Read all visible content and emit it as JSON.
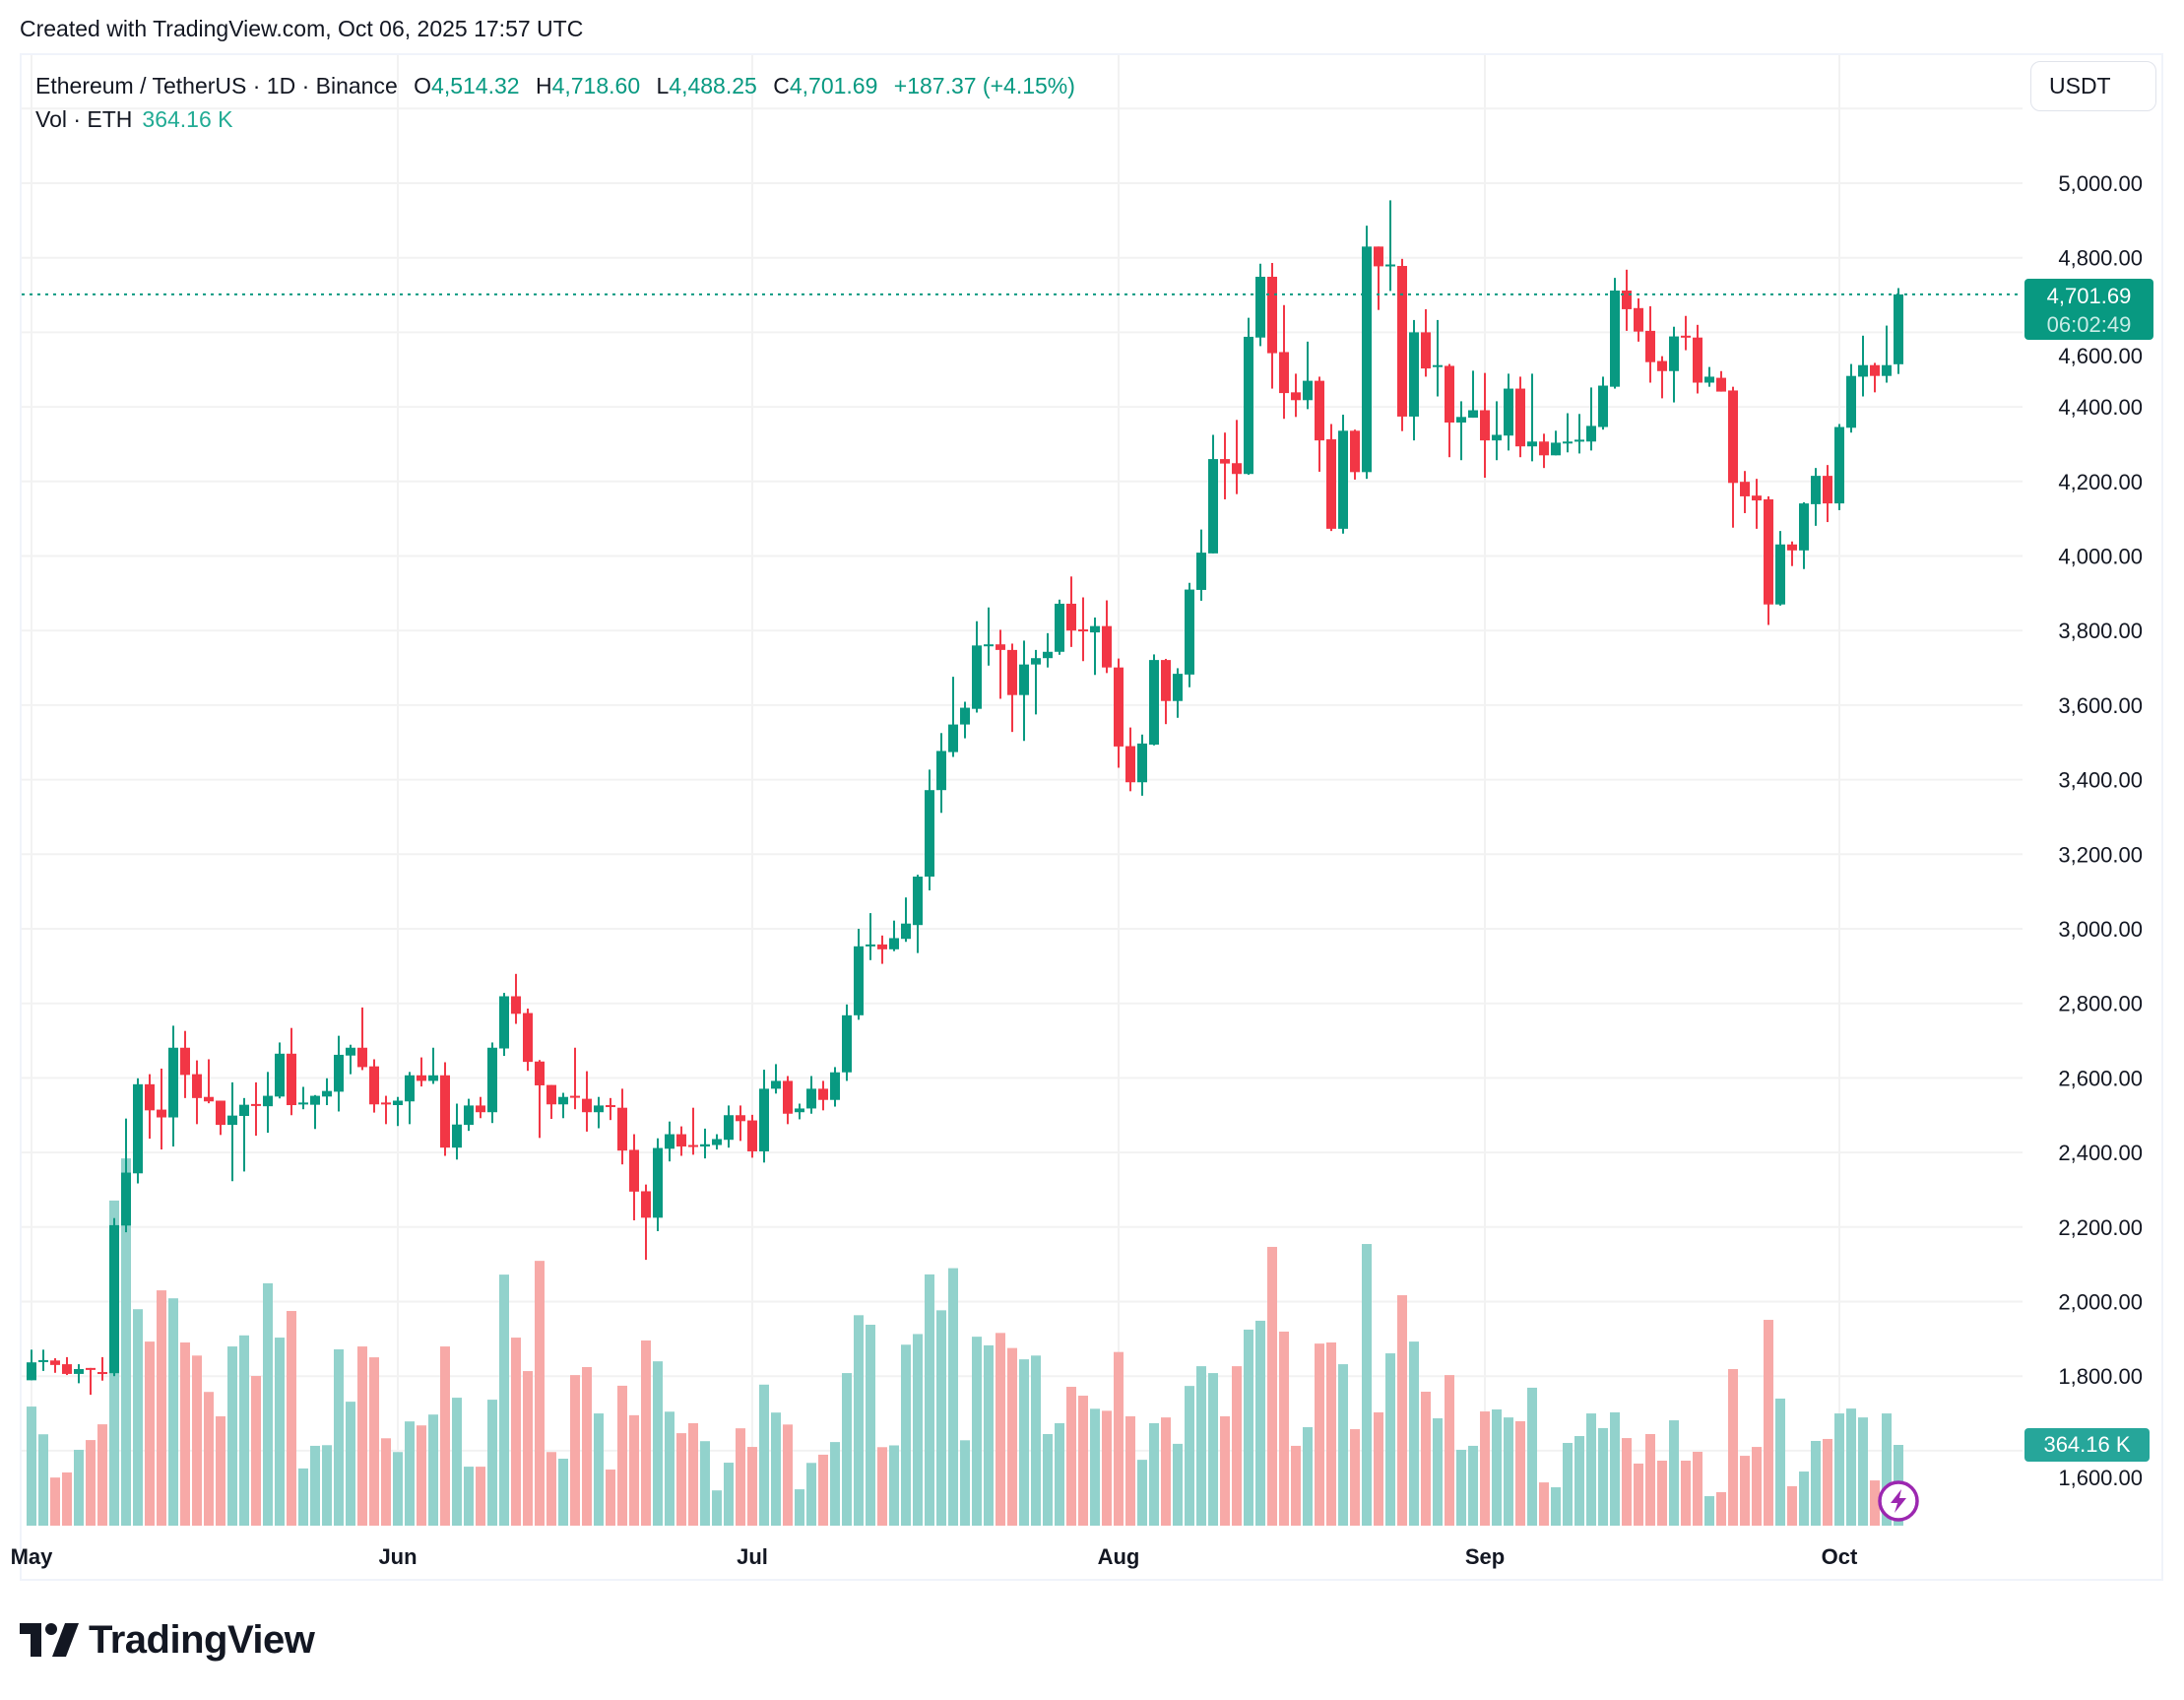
{
  "header": {
    "created": "Created with TradingView.com, Oct 06, 2025 17:57 UTC"
  },
  "legend": {
    "symbol": "Ethereum / TetherUS · 1D · Binance",
    "o_label": "O",
    "o_value": "4,514.32",
    "h_label": "H",
    "h_value": "4,718.60",
    "l_label": "L",
    "l_value": "4,488.25",
    "c_label": "C",
    "c_value": "4,701.69",
    "change": "+187.37 (+4.15%)",
    "vol_label": "Vol · ETH",
    "vol_value": "364.16 K"
  },
  "axis": {
    "currency_button": "USDT",
    "last_price": "4,701.69",
    "countdown": "06:02:49",
    "last_volume": "364.16 K"
  },
  "footer": {
    "brand": "TradingView"
  },
  "icons": {
    "alert": "lightning-bolt-icon",
    "logo": "tradingview-logo-icon"
  },
  "colors": {
    "up": "#089981",
    "down": "#f23645",
    "up_volume": "#92d2cc",
    "down_volume": "#f7a9a7",
    "grid": "#f2f2f2",
    "alert": "#9c27b0"
  },
  "chart_data": {
    "type": "candlestick",
    "symbol": "ETHUSDT",
    "interval": "1D",
    "grid": true,
    "y_axis_ticks": [
      "5,000.00",
      "4,800.00",
      "4,600.00",
      "4,400.00",
      "4,200.00",
      "4,000.00",
      "3,800.00",
      "3,600.00",
      "3,400.00",
      "3,200.00",
      "3,000.00",
      "2,800.00",
      "2,600.00",
      "2,400.00",
      "2,200.00",
      "2,000.00",
      "1,800.00",
      "1,600.00"
    ],
    "y_tick_values": [
      5000,
      4800,
      4600,
      4400,
      4200,
      4000,
      3800,
      3600,
      3400,
      3200,
      3000,
      2800,
      2600,
      2400,
      2200,
      2000,
      1800,
      1600
    ],
    "x_axis_ticks": [
      {
        "label": "May",
        "date": "2025-05-01"
      },
      {
        "label": "Jun",
        "date": "2025-06-01"
      },
      {
        "label": "Jul",
        "date": "2025-07-01"
      },
      {
        "label": "Aug",
        "date": "2025-08-01"
      },
      {
        "label": "Sep",
        "date": "2025-09-01"
      },
      {
        "label": "Oct",
        "date": "2025-10-01"
      }
    ],
    "last_price": 4701.69,
    "volume_unit": "K ETH",
    "columns": [
      "date",
      "open",
      "high",
      "low",
      "close",
      "volume"
    ],
    "candles": [
      [
        "2025-05-01",
        1789,
        1871,
        1789,
        1837,
        537
      ],
      [
        "2025-05-02",
        1838,
        1871,
        1814,
        1843,
        412
      ],
      [
        "2025-05-03",
        1842,
        1848,
        1809,
        1830,
        217
      ],
      [
        "2025-05-04",
        1832,
        1851,
        1803,
        1806,
        240
      ],
      [
        "2025-05-05",
        1806,
        1832,
        1781,
        1819,
        342
      ],
      [
        "2025-05-06",
        1822,
        1822,
        1750,
        1817,
        386
      ],
      [
        "2025-05-07",
        1811,
        1851,
        1788,
        1806,
        457
      ],
      [
        "2025-05-08",
        1808,
        2224,
        1800,
        2205,
        1466
      ],
      [
        "2025-05-09",
        2204,
        2491,
        2186,
        2346,
        1656
      ],
      [
        "2025-05-10",
        2344,
        2599,
        2317,
        2583,
        976
      ],
      [
        "2025-05-11",
        2583,
        2610,
        2437,
        2513,
        830
      ],
      [
        "2025-05-12",
        2515,
        2625,
        2408,
        2494,
        1061
      ],
      [
        "2025-05-13",
        2494,
        2740,
        2416,
        2681,
        1025
      ],
      [
        "2025-05-14",
        2681,
        2726,
        2546,
        2608,
        826
      ],
      [
        "2025-05-15",
        2610,
        2647,
        2476,
        2546,
        767
      ],
      [
        "2025-05-16",
        2549,
        2650,
        2532,
        2537,
        603
      ],
      [
        "2025-05-17",
        2539,
        2539,
        2447,
        2474,
        493
      ],
      [
        "2025-05-18",
        2474,
        2588,
        2323,
        2499,
        808
      ],
      [
        "2025-05-19",
        2498,
        2546,
        2349,
        2528,
        858
      ],
      [
        "2025-05-20",
        2530,
        2588,
        2445,
        2527,
        675
      ],
      [
        "2025-05-21",
        2524,
        2616,
        2453,
        2552,
        1093
      ],
      [
        "2025-05-22",
        2550,
        2695,
        2545,
        2665,
        848
      ],
      [
        "2025-05-23",
        2665,
        2734,
        2500,
        2527,
        968
      ],
      [
        "2025-05-24",
        2530,
        2576,
        2516,
        2534,
        258
      ],
      [
        "2025-05-25",
        2528,
        2554,
        2463,
        2552,
        360
      ],
      [
        "2025-05-26",
        2550,
        2599,
        2527,
        2565,
        363
      ],
      [
        "2025-05-27",
        2563,
        2713,
        2510,
        2662,
        795
      ],
      [
        "2025-05-28",
        2660,
        2689,
        2610,
        2681,
        559
      ],
      [
        "2025-05-29",
        2681,
        2789,
        2621,
        2629,
        808
      ],
      [
        "2025-05-30",
        2631,
        2650,
        2507,
        2529,
        759
      ],
      [
        "2025-05-31",
        2534,
        2552,
        2476,
        2530,
        394
      ],
      [
        "2025-06-01",
        2527,
        2549,
        2471,
        2539,
        332
      ],
      [
        "2025-06-02",
        2537,
        2616,
        2476,
        2607,
        470
      ],
      [
        "2025-06-03",
        2607,
        2655,
        2577,
        2592,
        452
      ],
      [
        "2025-06-04",
        2592,
        2681,
        2584,
        2607,
        501
      ],
      [
        "2025-06-05",
        2607,
        2642,
        2391,
        2413,
        808
      ],
      [
        "2025-06-06",
        2413,
        2531,
        2381,
        2475,
        577
      ],
      [
        "2025-06-07",
        2474,
        2544,
        2458,
        2526,
        266
      ],
      [
        "2025-06-08",
        2526,
        2549,
        2492,
        2508,
        266
      ],
      [
        "2025-06-09",
        2508,
        2695,
        2479,
        2681,
        568
      ],
      [
        "2025-06-10",
        2679,
        2828,
        2659,
        2819,
        1132
      ],
      [
        "2025-06-11",
        2819,
        2879,
        2745,
        2772,
        848
      ],
      [
        "2025-06-12",
        2774,
        2786,
        2619,
        2643,
        697
      ],
      [
        "2025-06-13",
        2644,
        2648,
        2439,
        2580,
        1194
      ],
      [
        "2025-06-14",
        2581,
        2581,
        2490,
        2529,
        332
      ],
      [
        "2025-06-15",
        2529,
        2560,
        2492,
        2549,
        302
      ],
      [
        "2025-06-16",
        2552,
        2681,
        2516,
        2547,
        679
      ],
      [
        "2025-06-17",
        2544,
        2618,
        2456,
        2508,
        715
      ],
      [
        "2025-06-18",
        2508,
        2549,
        2465,
        2526,
        506
      ],
      [
        "2025-06-19",
        2527,
        2546,
        2487,
        2524,
        253
      ],
      [
        "2025-06-20",
        2520,
        2571,
        2368,
        2405,
        631
      ],
      [
        "2025-06-21",
        2407,
        2449,
        2218,
        2295,
        498
      ],
      [
        "2025-06-22",
        2296,
        2314,
        2112,
        2225,
        835
      ],
      [
        "2025-06-23",
        2225,
        2438,
        2189,
        2412,
        741
      ],
      [
        "2025-06-24",
        2410,
        2483,
        2376,
        2449,
        514
      ],
      [
        "2025-06-25",
        2449,
        2470,
        2391,
        2416,
        417
      ],
      [
        "2025-06-26",
        2420,
        2520,
        2394,
        2416,
        462
      ],
      [
        "2025-06-27",
        2416,
        2464,
        2384,
        2422,
        381
      ],
      [
        "2025-06-28",
        2420,
        2449,
        2408,
        2436,
        159
      ],
      [
        "2025-06-29",
        2434,
        2526,
        2413,
        2500,
        284
      ],
      [
        "2025-06-30",
        2500,
        2526,
        2431,
        2484,
        439
      ],
      [
        "2025-07-01",
        2486,
        2501,
        2386,
        2403,
        355
      ],
      [
        "2025-07-02",
        2403,
        2622,
        2373,
        2571,
        636
      ],
      [
        "2025-07-03",
        2571,
        2637,
        2558,
        2592,
        510
      ],
      [
        "2025-07-04",
        2592,
        2605,
        2476,
        2504,
        456
      ],
      [
        "2025-07-05",
        2508,
        2531,
        2489,
        2518,
        164
      ],
      [
        "2025-07-06",
        2518,
        2605,
        2504,
        2571,
        283
      ],
      [
        "2025-07-07",
        2571,
        2592,
        2513,
        2541,
        320
      ],
      [
        "2025-07-08",
        2541,
        2629,
        2523,
        2615,
        377
      ],
      [
        "2025-07-09",
        2615,
        2797,
        2592,
        2768,
        688
      ],
      [
        "2025-07-10",
        2768,
        3000,
        2756,
        2953,
        949
      ],
      [
        "2025-07-11",
        2953,
        3042,
        2916,
        2958,
        906
      ],
      [
        "2025-07-12",
        2958,
        2982,
        2906,
        2945,
        354
      ],
      [
        "2025-07-13",
        2945,
        3022,
        2940,
        2975,
        362
      ],
      [
        "2025-07-14",
        2973,
        3084,
        2965,
        3014,
        816
      ],
      [
        "2025-07-15",
        3010,
        3145,
        2935,
        3140,
        864
      ],
      [
        "2025-07-16",
        3140,
        3427,
        3103,
        3372,
        1133
      ],
      [
        "2025-07-17",
        3372,
        3525,
        3311,
        3477,
        971
      ],
      [
        "2025-07-18",
        3474,
        3676,
        3461,
        3548,
        1161
      ],
      [
        "2025-07-19",
        3548,
        3609,
        3511,
        3593,
        385
      ],
      [
        "2025-07-20",
        3590,
        3825,
        3580,
        3760,
        852
      ],
      [
        "2025-07-21",
        3760,
        3862,
        3706,
        3763,
        813
      ],
      [
        "2025-07-22",
        3763,
        3802,
        3617,
        3748,
        869
      ],
      [
        "2025-07-23",
        3748,
        3765,
        3528,
        3627,
        801
      ],
      [
        "2025-07-24",
        3627,
        3773,
        3504,
        3709,
        750
      ],
      [
        "2025-07-25",
        3709,
        3748,
        3575,
        3726,
        767
      ],
      [
        "2025-07-26",
        3726,
        3793,
        3701,
        3743,
        413
      ],
      [
        "2025-07-27",
        3743,
        3883,
        3735,
        3872,
        462
      ],
      [
        "2025-07-28",
        3872,
        3945,
        3756,
        3800,
        626
      ],
      [
        "2025-07-29",
        3803,
        3889,
        3718,
        3800,
        586
      ],
      [
        "2025-07-30",
        3795,
        3835,
        3681,
        3812,
        527
      ],
      [
        "2025-07-31",
        3812,
        3881,
        3686,
        3701,
        518
      ],
      [
        "2025-08-01",
        3701,
        3725,
        3432,
        3489,
        783
      ],
      [
        "2025-08-02",
        3490,
        3540,
        3369,
        3393,
        493
      ],
      [
        "2025-08-03",
        3393,
        3521,
        3357,
        3497,
        297
      ],
      [
        "2025-08-04",
        3494,
        3736,
        3492,
        3721,
        462
      ],
      [
        "2025-08-05",
        3721,
        3724,
        3549,
        3611,
        488
      ],
      [
        "2025-08-06",
        3611,
        3699,
        3566,
        3684,
        369
      ],
      [
        "2025-08-07",
        3682,
        3928,
        3648,
        3910,
        630
      ],
      [
        "2025-08-08",
        3909,
        4071,
        3880,
        4009,
        719
      ],
      [
        "2025-08-09",
        4007,
        4325,
        4007,
        4260,
        688
      ],
      [
        "2025-08-10",
        4260,
        4331,
        4152,
        4248,
        493
      ],
      [
        "2025-08-11",
        4249,
        4365,
        4166,
        4220,
        719
      ],
      [
        "2025-08-12",
        4220,
        4639,
        4218,
        4588,
        884
      ],
      [
        "2025-08-13",
        4586,
        4784,
        4563,
        4749,
        924
      ],
      [
        "2025-08-14",
        4749,
        4786,
        4449,
        4544,
        1257
      ],
      [
        "2025-08-15",
        4547,
        4673,
        4368,
        4437,
        875
      ],
      [
        "2025-08-16",
        4439,
        4489,
        4373,
        4418,
        360
      ],
      [
        "2025-08-17",
        4418,
        4575,
        4394,
        4470,
        444
      ],
      [
        "2025-08-18",
        4470,
        4481,
        4226,
        4310,
        821
      ],
      [
        "2025-08-19",
        4313,
        4354,
        4067,
        4073,
        826
      ],
      [
        "2025-08-20",
        4073,
        4379,
        4060,
        4336,
        728
      ],
      [
        "2025-08-21",
        4336,
        4339,
        4205,
        4225,
        435
      ],
      [
        "2025-08-22",
        4225,
        4886,
        4207,
        4830,
        1270
      ],
      [
        "2025-08-23",
        4830,
        4830,
        4660,
        4777,
        511
      ],
      [
        "2025-08-24",
        4778,
        4954,
        4711,
        4782,
        777
      ],
      [
        "2025-08-25",
        4778,
        4797,
        4335,
        4374,
        1039
      ],
      [
        "2025-08-26",
        4374,
        4633,
        4310,
        4600,
        830
      ],
      [
        "2025-08-27",
        4600,
        4662,
        4481,
        4503,
        604
      ],
      [
        "2025-08-28",
        4508,
        4633,
        4428,
        4512,
        484
      ],
      [
        "2025-08-29",
        4510,
        4515,
        4265,
        4358,
        679
      ],
      [
        "2025-08-30",
        4358,
        4415,
        4257,
        4373,
        342
      ],
      [
        "2025-08-31",
        4371,
        4497,
        4371,
        4391,
        360
      ],
      [
        "2025-09-01",
        4391,
        4491,
        4210,
        4310,
        515
      ],
      [
        "2025-09-02",
        4310,
        4415,
        4257,
        4325,
        524
      ],
      [
        "2025-09-03",
        4323,
        4489,
        4283,
        4449,
        488
      ],
      [
        "2025-09-04",
        4449,
        4481,
        4265,
        4294,
        471
      ],
      [
        "2025-09-05",
        4294,
        4489,
        4254,
        4307,
        622
      ],
      [
        "2025-09-06",
        4307,
        4328,
        4236,
        4270,
        195
      ],
      [
        "2025-09-07",
        4270,
        4336,
        4270,
        4304,
        173
      ],
      [
        "2025-09-08",
        4304,
        4383,
        4278,
        4307,
        373
      ],
      [
        "2025-09-09",
        4307,
        4381,
        4275,
        4312,
        404
      ],
      [
        "2025-09-10",
        4307,
        4452,
        4283,
        4349,
        506
      ],
      [
        "2025-09-11",
        4346,
        4481,
        4339,
        4457,
        440
      ],
      [
        "2025-09-12",
        4454,
        4746,
        4449,
        4712,
        511
      ],
      [
        "2025-09-13",
        4712,
        4768,
        4604,
        4662,
        395
      ],
      [
        "2025-09-14",
        4665,
        4691,
        4575,
        4602,
        280
      ],
      [
        "2025-09-15",
        4604,
        4670,
        4465,
        4520,
        413
      ],
      [
        "2025-09-16",
        4523,
        4536,
        4423,
        4496,
        293
      ],
      [
        "2025-09-17",
        4496,
        4615,
        4412,
        4589,
        475
      ],
      [
        "2025-09-18",
        4591,
        4644,
        4552,
        4586,
        293
      ],
      [
        "2025-09-19",
        4586,
        4620,
        4436,
        4465,
        333
      ],
      [
        "2025-09-20",
        4465,
        4507,
        4454,
        4481,
        133
      ],
      [
        "2025-09-21",
        4478,
        4496,
        4441,
        4441,
        151
      ],
      [
        "2025-09-22",
        4444,
        4454,
        4076,
        4196,
        706
      ],
      [
        "2025-09-23",
        4199,
        4228,
        4115,
        4160,
        315
      ],
      [
        "2025-09-24",
        4162,
        4207,
        4073,
        4149,
        355
      ],
      [
        "2025-09-25",
        4152,
        4160,
        3815,
        3870,
        928
      ],
      [
        "2025-09-26",
        3870,
        4067,
        3867,
        4031,
        573
      ],
      [
        "2025-09-27",
        4031,
        4039,
        3973,
        4015,
        178
      ],
      [
        "2025-09-28",
        4015,
        4144,
        3965,
        4141,
        244
      ],
      [
        "2025-09-29",
        4139,
        4236,
        4081,
        4215,
        382
      ],
      [
        "2025-09-30",
        4215,
        4244,
        4091,
        4141,
        391
      ],
      [
        "2025-10-01",
        4141,
        4354,
        4123,
        4346,
        506
      ],
      [
        "2025-10-02",
        4344,
        4515,
        4331,
        4483,
        528
      ],
      [
        "2025-10-03",
        4481,
        4591,
        4428,
        4512,
        488
      ],
      [
        "2025-10-04",
        4512,
        4518,
        4439,
        4483,
        204
      ],
      [
        "2025-10-05",
        4483,
        4618,
        4465,
        4512,
        506
      ],
      [
        "2025-10-06",
        4514.32,
        4718.6,
        4488.25,
        4701.69,
        364.16
      ]
    ]
  }
}
